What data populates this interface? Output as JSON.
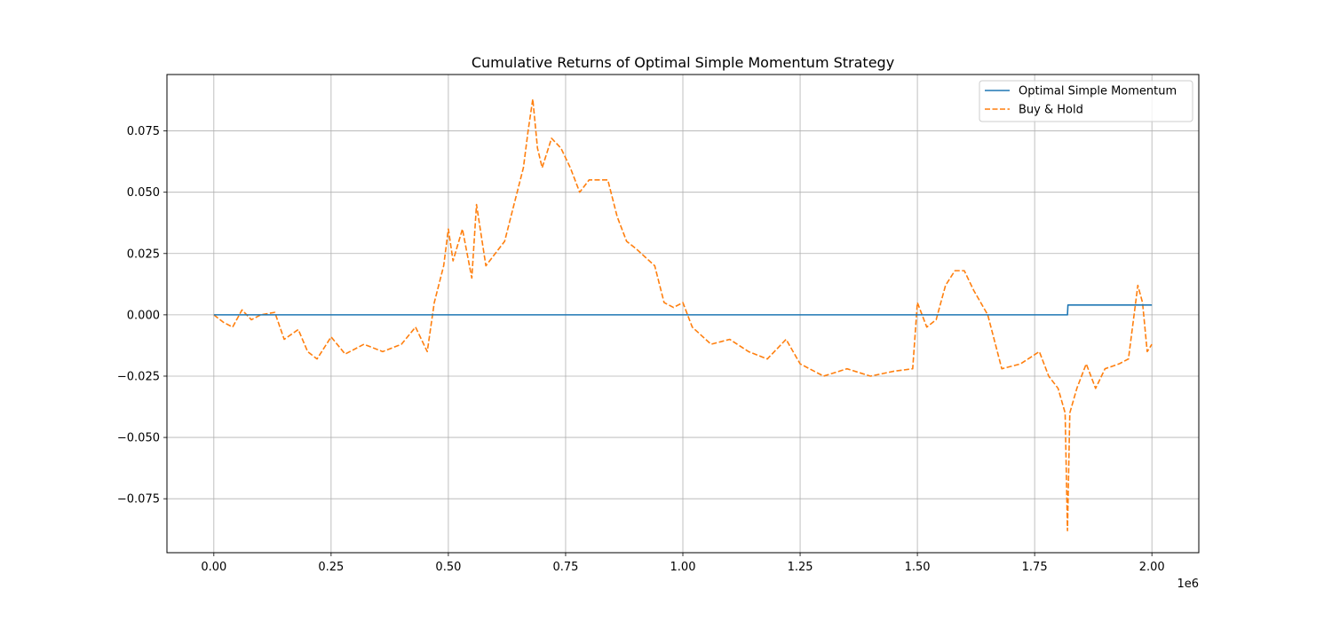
{
  "chart_data": {
    "type": "line",
    "title": "Cumulative Returns of Optimal Simple Momentum Strategy",
    "xlabel": "",
    "ylabel": "",
    "x_offset_label": "1e6",
    "xlim": [
      -0.1,
      2.1
    ],
    "ylim": [
      -0.097,
      0.098
    ],
    "xticks": [
      0.0,
      0.25,
      0.5,
      0.75,
      1.0,
      1.25,
      1.5,
      1.75,
      2.0
    ],
    "xtick_labels": [
      "0.00",
      "0.25",
      "0.50",
      "0.75",
      "1.00",
      "1.25",
      "1.50",
      "1.75",
      "2.00"
    ],
    "yticks": [
      -0.075,
      -0.05,
      -0.025,
      0.0,
      0.025,
      0.05,
      0.075
    ],
    "ytick_labels": [
      "−0.075",
      "−0.050",
      "−0.025",
      "0.000",
      "0.025",
      "0.050",
      "0.075"
    ],
    "grid": true,
    "legend_position": "top-right",
    "series": [
      {
        "name": "Optimal Simple Momentum",
        "color": "#1f77b4",
        "dash": "solid",
        "points": [
          [
            0.0,
            0.0
          ],
          [
            1.82,
            0.0
          ],
          [
            1.821,
            0.004
          ],
          [
            2.0,
            0.004
          ]
        ]
      },
      {
        "name": "Buy & Hold",
        "color": "#ff7f0e",
        "dash": "dashed",
        "points": [
          [
            0.0,
            0.0
          ],
          [
            0.02,
            -0.003
          ],
          [
            0.04,
            -0.005
          ],
          [
            0.06,
            0.002
          ],
          [
            0.08,
            -0.002
          ],
          [
            0.1,
            0.0
          ],
          [
            0.13,
            0.001
          ],
          [
            0.15,
            -0.01
          ],
          [
            0.18,
            -0.006
          ],
          [
            0.2,
            -0.015
          ],
          [
            0.22,
            -0.018
          ],
          [
            0.25,
            -0.009
          ],
          [
            0.28,
            -0.016
          ],
          [
            0.32,
            -0.012
          ],
          [
            0.36,
            -0.015
          ],
          [
            0.4,
            -0.012
          ],
          [
            0.43,
            -0.005
          ],
          [
            0.455,
            -0.015
          ],
          [
            0.47,
            0.005
          ],
          [
            0.49,
            0.02
          ],
          [
            0.5,
            0.035
          ],
          [
            0.51,
            0.022
          ],
          [
            0.53,
            0.035
          ],
          [
            0.55,
            0.015
          ],
          [
            0.56,
            0.045
          ],
          [
            0.58,
            0.02
          ],
          [
            0.6,
            0.025
          ],
          [
            0.62,
            0.03
          ],
          [
            0.64,
            0.045
          ],
          [
            0.66,
            0.06
          ],
          [
            0.67,
            0.075
          ],
          [
            0.68,
            0.088
          ],
          [
            0.69,
            0.068
          ],
          [
            0.7,
            0.06
          ],
          [
            0.72,
            0.072
          ],
          [
            0.74,
            0.068
          ],
          [
            0.76,
            0.06
          ],
          [
            0.78,
            0.05
          ],
          [
            0.8,
            0.055
          ],
          [
            0.84,
            0.055
          ],
          [
            0.86,
            0.04
          ],
          [
            0.88,
            0.03
          ],
          [
            0.9,
            0.027
          ],
          [
            0.94,
            0.02
          ],
          [
            0.96,
            0.005
          ],
          [
            0.98,
            0.003
          ],
          [
            1.0,
            0.005
          ],
          [
            1.02,
            -0.005
          ],
          [
            1.06,
            -0.012
          ],
          [
            1.1,
            -0.01
          ],
          [
            1.14,
            -0.015
          ],
          [
            1.18,
            -0.018
          ],
          [
            1.22,
            -0.01
          ],
          [
            1.25,
            -0.02
          ],
          [
            1.3,
            -0.025
          ],
          [
            1.35,
            -0.022
          ],
          [
            1.4,
            -0.025
          ],
          [
            1.45,
            -0.023
          ],
          [
            1.49,
            -0.022
          ],
          [
            1.5,
            0.005
          ],
          [
            1.52,
            -0.005
          ],
          [
            1.54,
            -0.002
          ],
          [
            1.56,
            0.012
          ],
          [
            1.58,
            0.018
          ],
          [
            1.6,
            0.018
          ],
          [
            1.62,
            0.01
          ],
          [
            1.65,
            0.0
          ],
          [
            1.68,
            -0.022
          ],
          [
            1.72,
            -0.02
          ],
          [
            1.76,
            -0.015
          ],
          [
            1.78,
            -0.025
          ],
          [
            1.8,
            -0.03
          ],
          [
            1.815,
            -0.04
          ],
          [
            1.82,
            -0.088
          ],
          [
            1.825,
            -0.04
          ],
          [
            1.84,
            -0.03
          ],
          [
            1.86,
            -0.02
          ],
          [
            1.88,
            -0.03
          ],
          [
            1.9,
            -0.022
          ],
          [
            1.93,
            -0.02
          ],
          [
            1.95,
            -0.018
          ],
          [
            1.97,
            0.012
          ],
          [
            1.98,
            0.005
          ],
          [
            1.99,
            -0.015
          ],
          [
            2.0,
            -0.012
          ]
        ]
      }
    ]
  }
}
